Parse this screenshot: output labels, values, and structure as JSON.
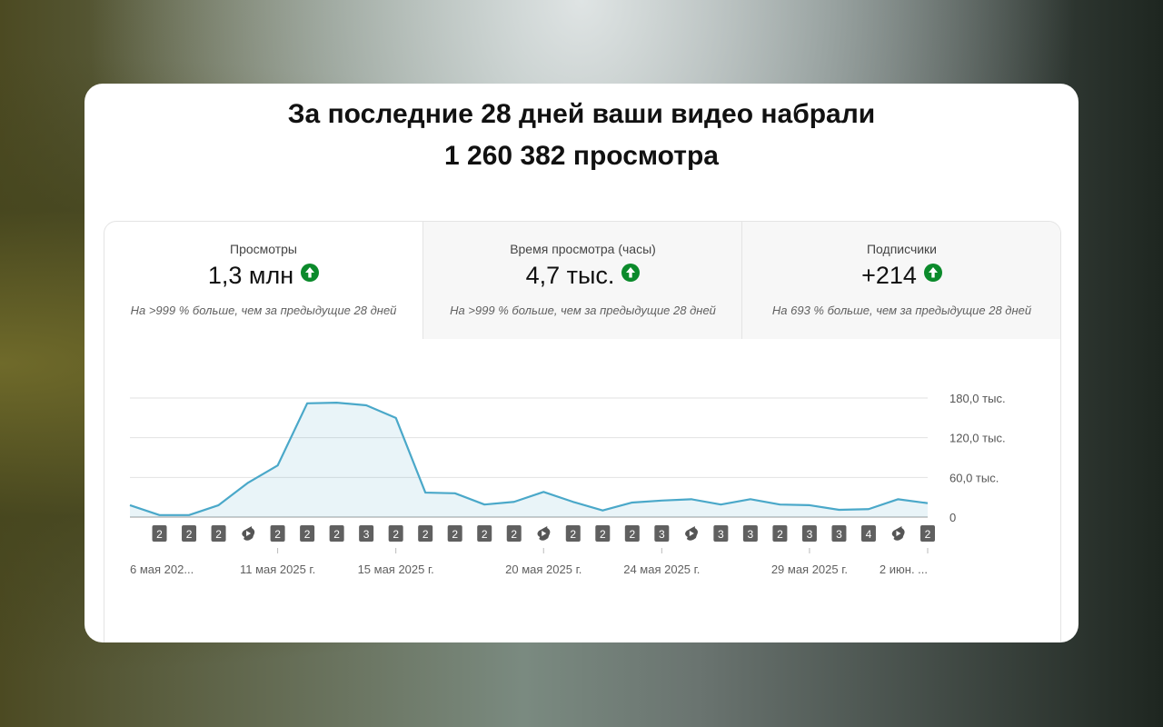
{
  "header": {
    "title_line1": "За последние 28 дней ваши видео набрали",
    "title_line2": "1 260 382 просмотра"
  },
  "metrics": [
    {
      "label": "Просмотры",
      "value": "1,3 млн",
      "note": "На >999 % больше, чем за предыдущие 28 дней"
    },
    {
      "label": "Время просмотра (часы)",
      "value": "4,7 тыс.",
      "note": "На >999 % больше, чем за предыдущие 28 дней"
    },
    {
      "label": "Подписчики",
      "value": "+214",
      "note": "На 693 % больше, чем за предыдущие 28 дней"
    }
  ],
  "chart_data": {
    "type": "line",
    "categories": [
      "6 мая 202...",
      null,
      null,
      null,
      null,
      "11 мая 2025 г.",
      null,
      null,
      null,
      "15 мая 2025 г.",
      null,
      null,
      null,
      null,
      "20 мая 2025 г.",
      null,
      null,
      null,
      "24 мая 2025 г.",
      null,
      null,
      null,
      null,
      "29 мая 2025 г.",
      null,
      null,
      null,
      "2 июн. ..."
    ],
    "series": [
      {
        "name": "Просмотры",
        "color": "#4aa8c9",
        "values": [
          18000,
          3000,
          3000,
          18000,
          52000,
          78000,
          172000,
          173000,
          169000,
          150000,
          37000,
          36000,
          19000,
          23000,
          38000,
          23000,
          10000,
          22000,
          25000,
          27000,
          19000,
          27000,
          19000,
          18000,
          11000,
          12000,
          27000,
          21000
        ]
      }
    ],
    "ylim": [
      0,
      180000
    ],
    "yticks": [
      0,
      {
        "value": 60000,
        "label": "60,0 тыс."
      },
      {
        "value": 120000,
        "label": "120,0 тыс."
      },
      {
        "value": 180000,
        "label": "180,0 тыс."
      }
    ],
    "grid": true,
    "upload_badges": [
      null,
      {
        "kind": "count",
        "value": 2
      },
      {
        "kind": "count",
        "value": 2
      },
      {
        "kind": "count",
        "value": 2
      },
      {
        "kind": "shorts"
      },
      {
        "kind": "count",
        "value": 2
      },
      {
        "kind": "count",
        "value": 2
      },
      {
        "kind": "count",
        "value": 2
      },
      {
        "kind": "count",
        "value": 3
      },
      {
        "kind": "count",
        "value": 2
      },
      {
        "kind": "count",
        "value": 2
      },
      {
        "kind": "count",
        "value": 2
      },
      {
        "kind": "count",
        "value": 2
      },
      {
        "kind": "count",
        "value": 2
      },
      {
        "kind": "shorts"
      },
      {
        "kind": "count",
        "value": 2
      },
      {
        "kind": "count",
        "value": 2
      },
      {
        "kind": "count",
        "value": 2
      },
      {
        "kind": "count",
        "value": 3
      },
      {
        "kind": "shorts"
      },
      {
        "kind": "count",
        "value": 3
      },
      {
        "kind": "count",
        "value": 3
      },
      {
        "kind": "count",
        "value": 2
      },
      {
        "kind": "count",
        "value": 3
      },
      {
        "kind": "count",
        "value": 3
      },
      {
        "kind": "count",
        "value": 4
      },
      {
        "kind": "shorts"
      },
      {
        "kind": "count",
        "value": 2
      }
    ]
  }
}
